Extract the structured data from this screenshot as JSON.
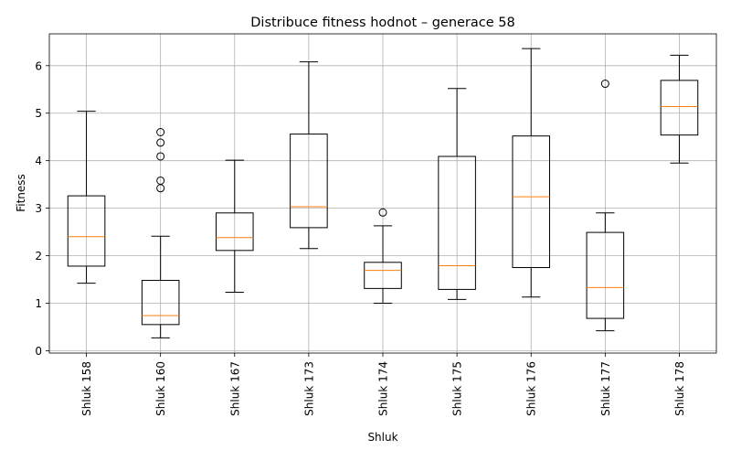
{
  "chart_data": {
    "type": "boxplot",
    "title": "Distribuce fitness hodnot – generace 58",
    "xlabel": "Shluk",
    "ylabel": "Fitness",
    "ylim": [
      -0.05,
      6.67
    ],
    "yticks": [
      0,
      1,
      2,
      3,
      4,
      5,
      6
    ],
    "grid": true,
    "colors": {
      "box": "#000000",
      "median": "#ff7f0e",
      "grid": "#b0b0b0"
    },
    "boxes": [
      {
        "label": "Shluk 158",
        "whislo": 1.42,
        "q1": 1.78,
        "med": 2.4,
        "q3": 3.26,
        "whishi": 5.04,
        "fliers": []
      },
      {
        "label": "Shluk 160",
        "whislo": 0.27,
        "q1": 0.55,
        "med": 0.74,
        "q3": 1.48,
        "whishi": 2.41,
        "fliers": [
          3.42,
          3.58,
          4.09,
          4.38,
          4.6
        ]
      },
      {
        "label": "Shluk 167",
        "whislo": 1.23,
        "q1": 2.11,
        "med": 2.38,
        "q3": 2.9,
        "whishi": 4.01,
        "fliers": []
      },
      {
        "label": "Shluk 173",
        "whislo": 2.15,
        "q1": 2.59,
        "med": 3.03,
        "q3": 4.56,
        "whishi": 6.08,
        "fliers": []
      },
      {
        "label": "Shluk 174",
        "whislo": 1.0,
        "q1": 1.31,
        "med": 1.69,
        "q3": 1.86,
        "whishi": 2.63,
        "fliers": [
          2.91
        ]
      },
      {
        "label": "Shluk 175",
        "whislo": 1.08,
        "q1": 1.29,
        "med": 1.79,
        "q3": 4.09,
        "whishi": 5.52,
        "fliers": []
      },
      {
        "label": "Shluk 176",
        "whislo": 1.13,
        "q1": 1.75,
        "med": 3.24,
        "q3": 4.52,
        "whishi": 6.36,
        "fliers": []
      },
      {
        "label": "Shluk 177",
        "whislo": 0.42,
        "q1": 0.68,
        "med": 1.33,
        "q3": 2.49,
        "whishi": 2.9,
        "fliers": [
          5.62
        ]
      },
      {
        "label": "Shluk 178",
        "whislo": 3.95,
        "q1": 4.54,
        "med": 5.14,
        "q3": 5.69,
        "whishi": 6.22,
        "fliers": []
      }
    ]
  }
}
